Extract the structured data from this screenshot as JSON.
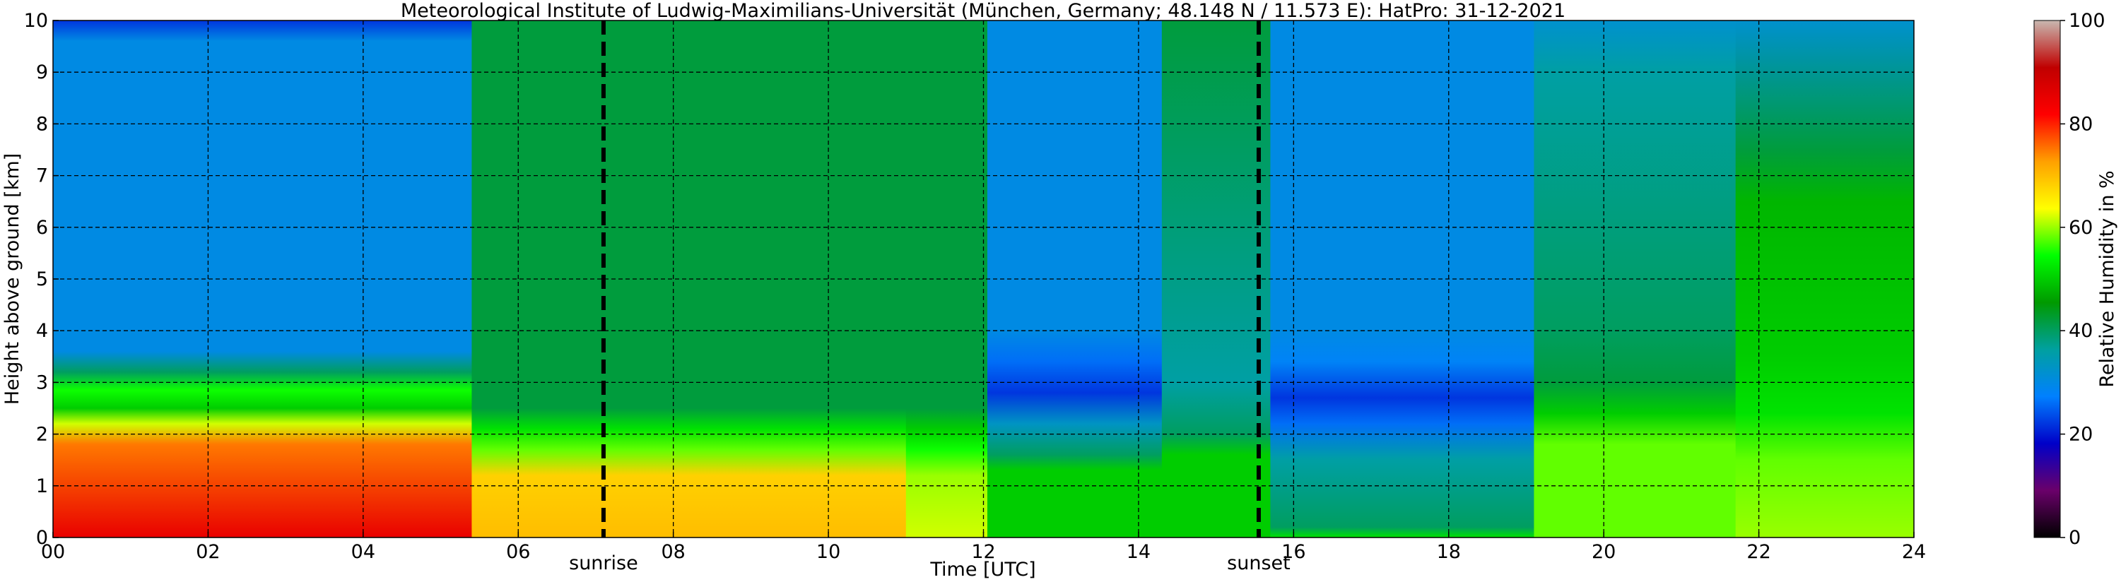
{
  "chart_data": {
    "type": "heatmap",
    "title": "Meteorological Institute of Ludwig-Maximilians-Universität (München, Germany; 48.148 N / 11.573 E):    HatPro: 31-12-2021",
    "xlabel": "Time [UTC]",
    "ylabel": "Height above ground [km]",
    "xlim": [
      0,
      24
    ],
    "ylim": [
      0,
      10
    ],
    "x_ticks": [
      "00",
      "02",
      "04",
      "06",
      "08",
      "10",
      "12",
      "14",
      "16",
      "18",
      "20",
      "22",
      "24"
    ],
    "y_ticks": [
      "0",
      "1",
      "2",
      "3",
      "4",
      "5",
      "6",
      "7",
      "8",
      "9",
      "10"
    ],
    "grid": true,
    "colorbar": {
      "label": "Relative Humidity in %",
      "range": [
        0,
        100
      ],
      "ticks": [
        "0",
        "20",
        "40",
        "60",
        "80",
        "100"
      ],
      "colors": [
        "#000000",
        "#6a006a",
        "#0000c8",
        "#0080ff",
        "#00a0a0",
        "#009a00",
        "#00ff00",
        "#ffff00",
        "#ffa000",
        "#ff0000",
        "#c00000",
        "#c8b8b0"
      ]
    },
    "annotations": [
      {
        "x": 7.1,
        "label": "sunrise"
      },
      {
        "x": 15.55,
        "label": "sunset"
      }
    ],
    "time_segments": [
      {
        "t0": 0,
        "t1": 5.4,
        "profile": [
          [
            0,
            85
          ],
          [
            1.8,
            75
          ],
          [
            2.2,
            62
          ],
          [
            2.5,
            50
          ],
          [
            2.85,
            55
          ],
          [
            3.2,
            40
          ],
          [
            3.6,
            30
          ],
          [
            9.6,
            30
          ],
          [
            10,
            22
          ]
        ]
      },
      {
        "t0": 5.4,
        "t1": 11,
        "profile": [
          [
            0,
            70
          ],
          [
            1.2,
            68
          ],
          [
            1.7,
            58
          ],
          [
            2.1,
            52
          ],
          [
            2.5,
            42
          ],
          [
            10,
            42
          ]
        ]
      },
      {
        "t0": 11,
        "t1": 12.05,
        "profile": [
          [
            0,
            62
          ],
          [
            1.2,
            60
          ],
          [
            1.7,
            55
          ],
          [
            2.1,
            50
          ],
          [
            2.5,
            42
          ],
          [
            10,
            42
          ]
        ]
      },
      {
        "t0": 12.05,
        "t1": 14.3,
        "profile": [
          [
            0,
            50
          ],
          [
            1.3,
            50
          ],
          [
            1.6,
            40
          ],
          [
            2.2,
            33
          ],
          [
            2.8,
            22
          ],
          [
            3.4,
            26
          ],
          [
            4,
            30
          ],
          [
            10,
            30
          ]
        ]
      },
      {
        "t0": 14.3,
        "t1": 15.7,
        "profile": [
          [
            0,
            50
          ],
          [
            1.6,
            50
          ],
          [
            2,
            40
          ],
          [
            3,
            36
          ],
          [
            10,
            42
          ]
        ]
      },
      {
        "t0": 15.7,
        "t1": 19.1,
        "profile": [
          [
            0,
            52
          ],
          [
            0.2,
            40
          ],
          [
            1.5,
            36
          ],
          [
            2.2,
            26
          ],
          [
            2.7,
            22
          ],
          [
            3.4,
            28
          ],
          [
            4,
            30
          ],
          [
            10,
            30
          ]
        ]
      },
      {
        "t0": 19.1,
        "t1": 21.7,
        "profile": [
          [
            0,
            58
          ],
          [
            1.8,
            58
          ],
          [
            2.4,
            50
          ],
          [
            3,
            42
          ],
          [
            4,
            40
          ],
          [
            9,
            36
          ],
          [
            10,
            32
          ]
        ]
      },
      {
        "t0": 21.7,
        "t1": 24,
        "profile": [
          [
            0,
            60
          ],
          [
            1.5,
            58
          ],
          [
            2.4,
            52
          ],
          [
            3.5,
            50
          ],
          [
            6.5,
            48
          ],
          [
            7.5,
            42
          ],
          [
            10,
            32
          ]
        ]
      }
    ]
  }
}
